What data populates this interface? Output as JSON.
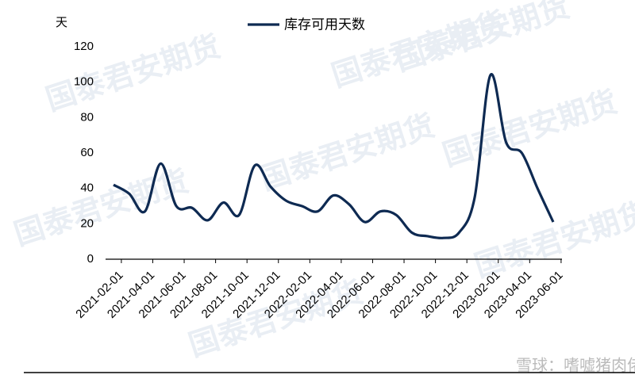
{
  "chart_data": {
    "type": "line",
    "y_unit": "天",
    "watermark": "国泰君安期货",
    "footer": "雪球：嗜嘘猪肉佬",
    "categories": [
      "2021-02-01",
      null,
      "2021-04-01",
      null,
      "2021-06-01",
      null,
      "2021-08-01",
      null,
      "2021-10-01",
      null,
      "2021-12-01",
      null,
      "2022-02-01",
      null,
      "2022-04-01",
      null,
      "2022-06-01",
      null,
      "2022-08-01",
      null,
      "2022-10-01",
      null,
      "2022-12-01",
      null,
      "2023-02-01",
      null,
      "2023-04-01",
      null,
      "2023-06-01"
    ],
    "series": [
      {
        "name": "库存可用天数",
        "color": "#0e2a52",
        "values": [
          42,
          37,
          27,
          54,
          30,
          29,
          22,
          32,
          25,
          53,
          41,
          33,
          30,
          27,
          36,
          31,
          21,
          27,
          25,
          15,
          13,
          12,
          15,
          35,
          104,
          66,
          60,
          40,
          21
        ]
      }
    ],
    "ylim": [
      0,
      120
    ],
    "yticks": [
      0,
      20,
      40,
      60,
      80,
      100,
      120
    ],
    "legend": "top"
  }
}
